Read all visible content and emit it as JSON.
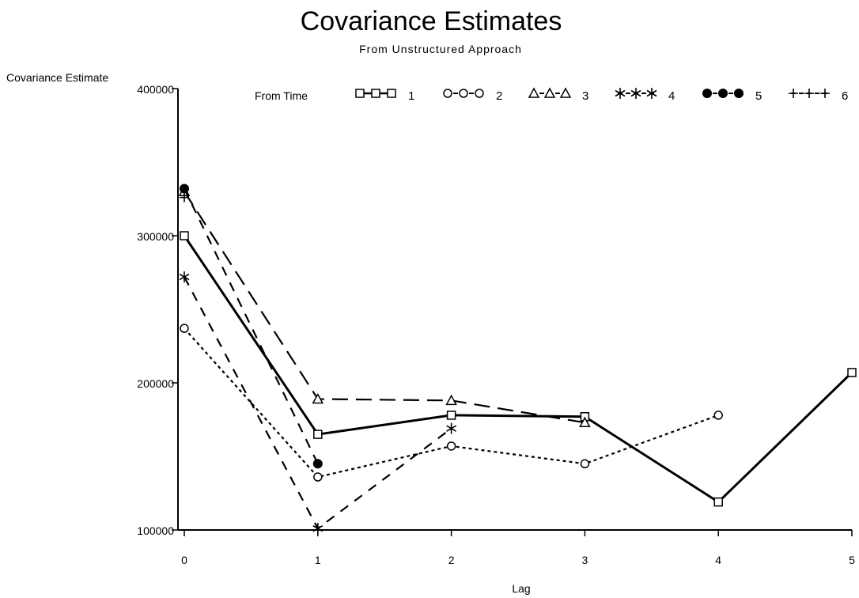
{
  "chart_data": {
    "type": "line",
    "title": "Covariance Estimates",
    "subtitle": "From Unstructured Approach",
    "xlabel": "Lag",
    "ylabel": "Covariance Estimate",
    "xlim": [
      0,
      5
    ],
    "ylim": [
      100000,
      400000
    ],
    "x_ticks": [
      "0",
      "1",
      "2",
      "3",
      "4",
      "5"
    ],
    "y_ticks": [
      "100000",
      "200000",
      "300000",
      "400000"
    ],
    "legend_title": "From Time",
    "legend_position": "top",
    "grid": false,
    "series": [
      {
        "name": "1",
        "marker": "square",
        "dash": "solid",
        "x": [
          0,
          1,
          2,
          3,
          4,
          5
        ],
        "y": [
          300000,
          165000,
          178000,
          177000,
          119000,
          207000
        ]
      },
      {
        "name": "2",
        "marker": "circle",
        "dash": "dotted",
        "x": [
          0,
          1,
          2,
          3,
          4
        ],
        "y": [
          237000,
          136000,
          157000,
          145000,
          178000
        ]
      },
      {
        "name": "3",
        "marker": "triangle",
        "dash": "longdash",
        "x": [
          0,
          1,
          2,
          3
        ],
        "y": [
          330000,
          189000,
          188000,
          173000
        ]
      },
      {
        "name": "4",
        "marker": "star",
        "dash": "dashed",
        "x": [
          0,
          1,
          2
        ],
        "y": [
          272000,
          101000,
          169000
        ]
      },
      {
        "name": "5",
        "marker": "dot",
        "dash": "dashed",
        "x": [
          0,
          1
        ],
        "y": [
          332000,
          145000
        ]
      },
      {
        "name": "6",
        "marker": "plus",
        "dash": "dashed",
        "x": [
          0
        ],
        "y": [
          326000
        ]
      }
    ]
  }
}
